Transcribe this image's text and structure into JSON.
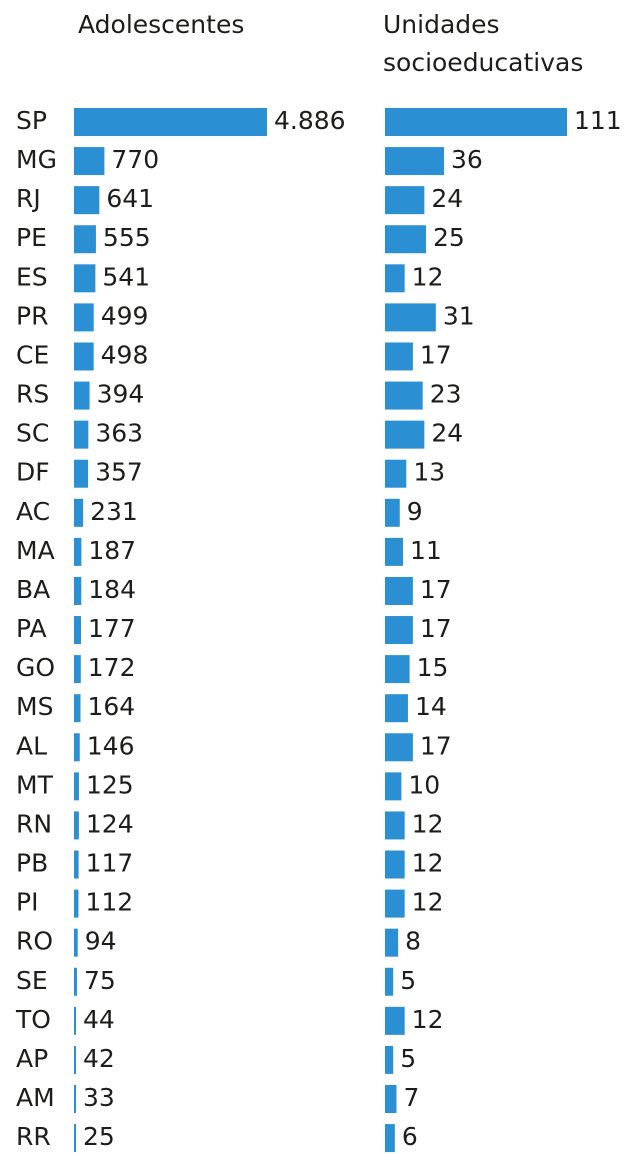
{
  "chart_data": {
    "type": "bar",
    "categories": [
      "SP",
      "MG",
      "RJ",
      "PE",
      "ES",
      "PR",
      "CE",
      "RS",
      "SC",
      "DF",
      "AC",
      "MA",
      "BA",
      "PA",
      "GO",
      "MS",
      "AL",
      "MT",
      "RN",
      "PB",
      "PI",
      "RO",
      "SE",
      "TO",
      "AP",
      "AM",
      "RR"
    ],
    "series": [
      {
        "name": "Adolescentes",
        "color": "#2a8fd3",
        "values": [
          4886,
          770,
          641,
          555,
          541,
          499,
          498,
          394,
          363,
          357,
          231,
          187,
          184,
          177,
          172,
          164,
          146,
          125,
          124,
          117,
          112,
          94,
          75,
          44,
          42,
          33,
          25
        ],
        "value_labels": [
          "4.886",
          "770",
          "641",
          "555",
          "541",
          "499",
          "498",
          "394",
          "363",
          "357",
          "231",
          "187",
          "184",
          "177",
          "172",
          "164",
          "146",
          "125",
          "124",
          "117",
          "112",
          "94",
          "75",
          "44",
          "42",
          "33",
          "25"
        ]
      },
      {
        "name": "Unidades socioeducativas",
        "color": "#2a8fd3",
        "values": [
          111,
          36,
          24,
          25,
          12,
          31,
          17,
          23,
          24,
          13,
          9,
          11,
          17,
          17,
          15,
          14,
          17,
          10,
          12,
          12,
          12,
          8,
          5,
          12,
          5,
          7,
          6
        ]
      }
    ]
  }
}
